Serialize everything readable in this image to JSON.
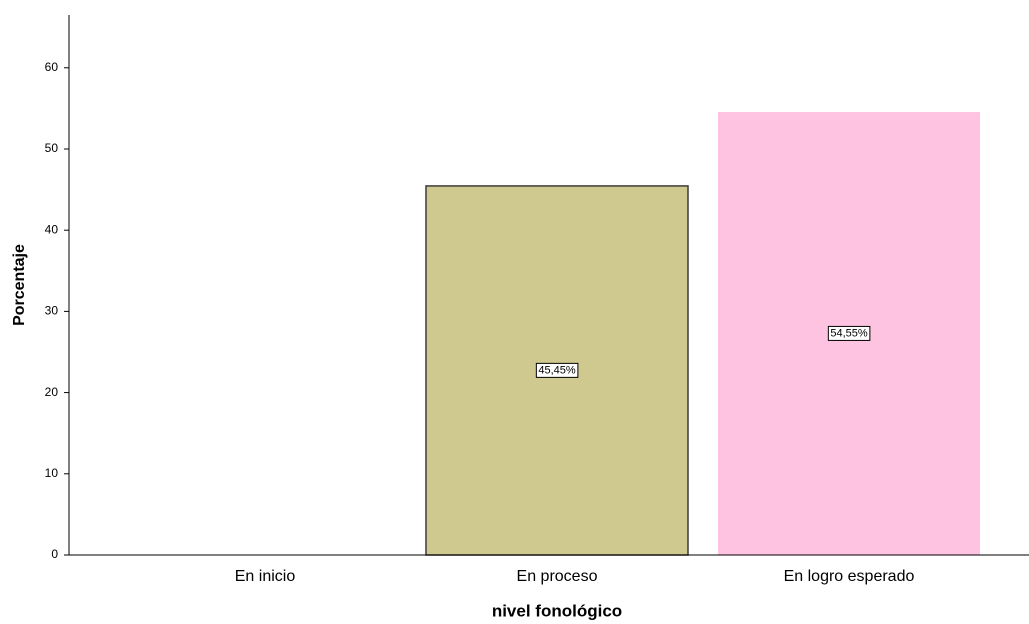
{
  "chart_data": {
    "type": "bar",
    "categories": [
      "En inicio",
      "En proceso",
      "En logro esperado"
    ],
    "values": [
      0,
      45.45,
      54.55
    ],
    "value_labels": [
      null,
      "45,45%",
      "54,55%"
    ],
    "colors": [
      null,
      "#d0c98f",
      "#fec3e1"
    ],
    "edgecolors": [
      null,
      "#3a3a3a",
      null
    ],
    "xlabel": "nivel fonológico",
    "ylabel": "Porcentaje",
    "ylim": [
      0,
      66.5
    ],
    "yticks": [
      0,
      10,
      20,
      30,
      40,
      50,
      60
    ],
    "grid": false
  }
}
